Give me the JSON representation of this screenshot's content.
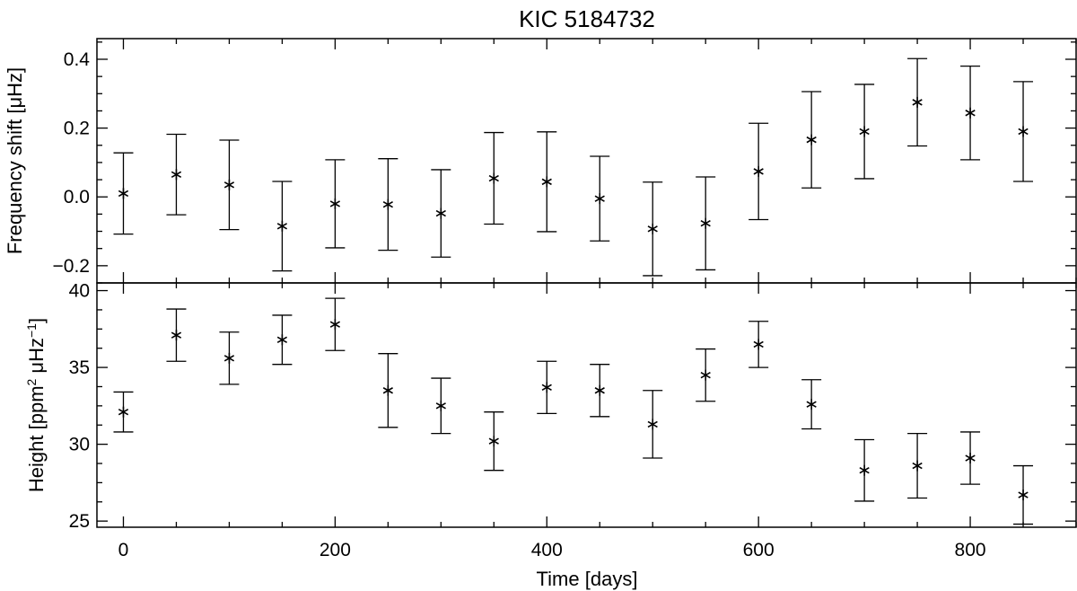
{
  "chart_data": {
    "type": "scatter",
    "title": "KIC 5184732",
    "xlabel": "Time [days]",
    "xlim": [
      -25,
      900
    ],
    "xticks": [
      0,
      200,
      400,
      600,
      800
    ],
    "xtick_labels": [
      "0",
      "200",
      "400",
      "600",
      "800"
    ],
    "x": [
      0,
      50,
      100,
      150,
      200,
      250,
      300,
      350,
      400,
      450,
      500,
      550,
      600,
      650,
      700,
      750,
      800,
      850
    ],
    "panels": [
      {
        "id": "top",
        "ylabel": "Frequency shift [μHz]",
        "ylim": [
          -0.25,
          0.46
        ],
        "yticks": [
          -0.2,
          0.0,
          0.2,
          0.4
        ],
        "ytick_labels": [
          "−0.2",
          "0.0",
          "0.2",
          "0.4"
        ],
        "series": [
          {
            "marker": "asterisk",
            "errorbars": true,
            "values": [
              0.01,
              0.065,
              0.035,
              -0.085,
              -0.02,
              -0.022,
              -0.048,
              0.054,
              0.044,
              -0.005,
              -0.093,
              -0.077,
              0.074,
              0.166,
              0.19,
              0.275,
              0.244,
              0.19
            ],
            "errors": [
              0.118,
              0.117,
              0.13,
              0.13,
              0.128,
              0.133,
              0.127,
              0.133,
              0.145,
              0.123,
              0.136,
              0.135,
              0.14,
              0.14,
              0.137,
              0.127,
              0.136,
              0.145
            ]
          }
        ]
      },
      {
        "id": "bottom",
        "ylabel_main": "Height [ppm",
        "ylabel_sup1": "2",
        "ylabel_mid": " μHz",
        "ylabel_sup2": "−1",
        "ylabel_end": "]",
        "ylim": [
          24.6,
          40.5
        ],
        "yticks": [
          25,
          30,
          35,
          40
        ],
        "ytick_labels": [
          "25",
          "30",
          "35",
          "40"
        ],
        "series": [
          {
            "marker": "asterisk",
            "errorbars": true,
            "values": [
              32.1,
              37.1,
              35.6,
              36.8,
              37.8,
              33.5,
              32.5,
              30.2,
              33.7,
              33.5,
              31.3,
              34.5,
              36.5,
              32.6,
              28.3,
              28.6,
              29.1,
              26.7
            ],
            "errors": [
              1.3,
              1.7,
              1.7,
              1.6,
              1.7,
              2.4,
              1.8,
              1.9,
              1.7,
              1.7,
              2.2,
              1.7,
              1.5,
              1.6,
              2.0,
              2.1,
              1.7,
              1.9
            ]
          }
        ]
      }
    ]
  }
}
